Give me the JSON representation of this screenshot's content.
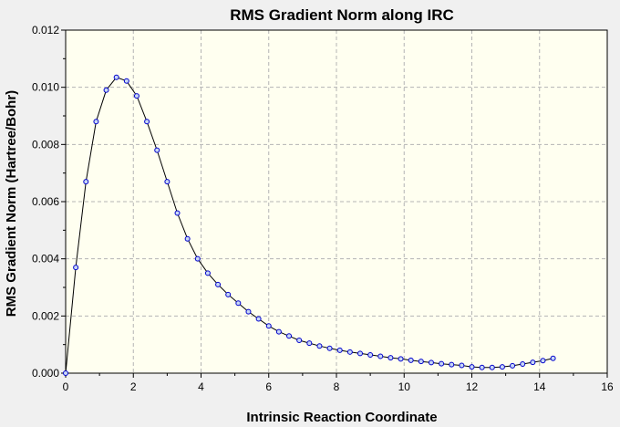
{
  "chart_data": {
    "type": "line",
    "title": "RMS Gradient Norm along IRC",
    "xlabel": "Intrinsic Reaction Coordinate",
    "ylabel": "RMS Gradient Norm (Hartree/Bohr)",
    "xlim": [
      0,
      16
    ],
    "ylim": [
      0,
      0.012
    ],
    "x_ticks": [
      "0",
      "2",
      "4",
      "6",
      "8",
      "10",
      "12",
      "14",
      "16"
    ],
    "y_ticks": [
      "0.000",
      "0.002",
      "0.004",
      "0.006",
      "0.008",
      "0.010",
      "0.012"
    ],
    "grid": true,
    "series": [
      {
        "x": [
          0,
          0.3,
          0.6,
          0.9,
          1.2,
          1.5,
          1.8,
          2.1,
          2.4,
          2.7,
          3.0,
          3.3,
          3.6,
          3.9,
          4.2,
          4.5,
          4.8,
          5.1,
          5.4,
          5.7,
          6.0,
          6.3,
          6.6,
          6.9,
          7.2,
          7.5,
          7.8,
          8.1,
          8.4,
          8.7,
          9.0,
          9.3,
          9.6,
          9.9,
          10.2,
          10.5,
          10.8,
          11.1,
          11.4,
          11.7,
          12.0,
          12.3,
          12.6,
          12.9,
          13.2,
          13.5,
          13.8,
          14.1,
          14.4
        ],
        "y": [
          0.0,
          0.0037,
          0.0067,
          0.0088,
          0.0099,
          0.01035,
          0.01022,
          0.0097,
          0.0088,
          0.0078,
          0.0067,
          0.0056,
          0.0047,
          0.004,
          0.0035,
          0.0031,
          0.00275,
          0.00245,
          0.00215,
          0.0019,
          0.00165,
          0.00145,
          0.0013,
          0.00115,
          0.00105,
          0.00095,
          0.00087,
          0.0008,
          0.00074,
          0.00069,
          0.00064,
          0.00059,
          0.00054,
          0.0005,
          0.00045,
          0.00041,
          0.00037,
          0.00033,
          0.0003,
          0.00027,
          0.00022,
          0.0002,
          0.0002,
          0.00022,
          0.00026,
          0.00032,
          0.00038,
          0.00044,
          0.00052
        ],
        "line_color": "#000000",
        "marker_fill": "#c8d7f5",
        "marker_stroke": "#0000cc"
      }
    ],
    "plot_background": "#fffff0",
    "figure_background": "#f0f0f0"
  }
}
